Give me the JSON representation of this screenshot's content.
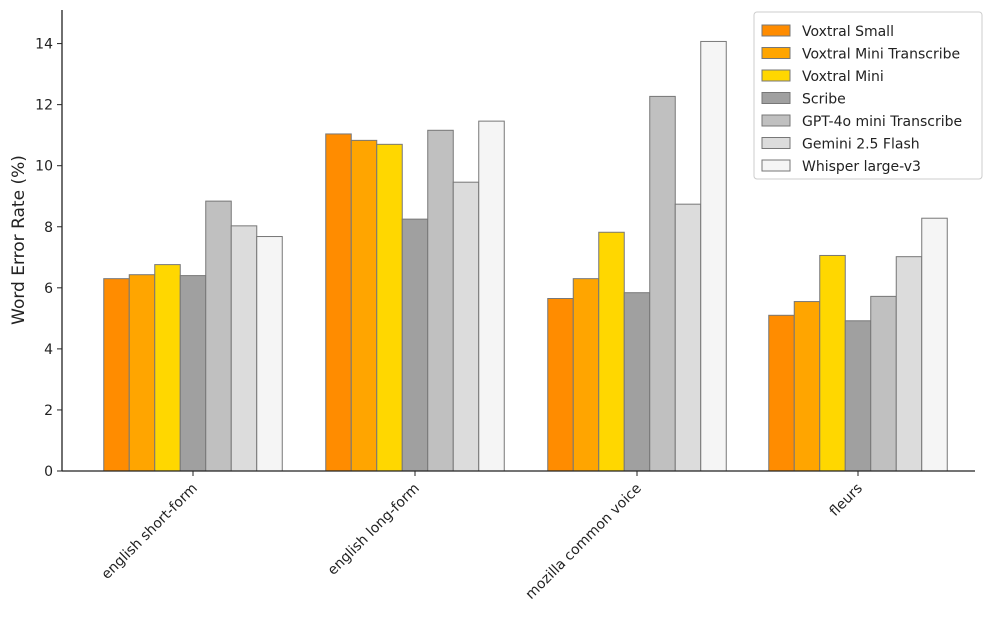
{
  "chart_data": {
    "type": "bar",
    "title": "",
    "xlabel": "",
    "ylabel": "Word Error Rate (%)",
    "ylim": [
      0,
      15.1
    ],
    "yticks": [
      0,
      2,
      4,
      6,
      8,
      10,
      12,
      14
    ],
    "grid": false,
    "legend_position": "top-right",
    "categories": [
      "english short-form",
      "english long-form",
      "mozilla common voice",
      "fleurs"
    ],
    "series": [
      {
        "name": "Voxtral Small",
        "color": "#ff8c00",
        "values": [
          6.3,
          11.04,
          5.65,
          5.1
        ]
      },
      {
        "name": "Voxtral Mini Transcribe",
        "color": "#ffa500",
        "values": [
          6.43,
          10.83,
          6.3,
          5.55
        ]
      },
      {
        "name": "Voxtral Mini",
        "color": "#ffd700",
        "values": [
          6.76,
          10.7,
          7.82,
          7.06
        ]
      },
      {
        "name": "Scribe",
        "color": "#a0a0a0",
        "values": [
          6.4,
          8.25,
          5.84,
          4.92
        ]
      },
      {
        "name": "GPT-4o mini Transcribe",
        "color": "#c0c0c0",
        "values": [
          8.84,
          11.16,
          12.27,
          5.72
        ]
      },
      {
        "name": "Gemini 2.5 Flash",
        "color": "#dcdcdc",
        "values": [
          8.03,
          9.46,
          8.74,
          7.02
        ]
      },
      {
        "name": "Whisper large-v3",
        "color": "#f5f5f5",
        "values": [
          7.68,
          11.46,
          14.07,
          8.28
        ]
      }
    ]
  }
}
